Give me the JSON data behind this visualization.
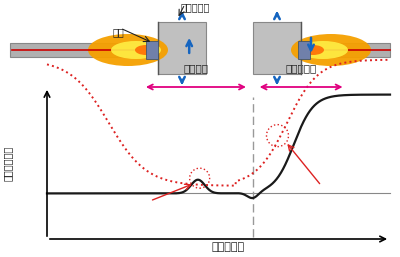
{
  "ylabel": "終端の変形量",
  "xlabel": "電極の位置",
  "label_denkyoku": "電極",
  "label_endtab_top": "エンドタブ",
  "label_yosetsu": "溶接継手",
  "label_endtab_graph": "エンドタブ",
  "bg_color": "#ffffff",
  "solid_line_color": "#1a1a1a",
  "dotted_line_color": "#dd2222",
  "arrow_color": "#e0007f",
  "dashed_vline_color": "#999999",
  "arrow_blue": "#1565c0",
  "text_color": "#222222",
  "flame_color_outer": "#f5a000",
  "flame_color_inner": "#ffee44",
  "flame_color_center": "#ff6600",
  "plate_color": "#b0b0b0",
  "plate_edge": "#888888",
  "box_color": "#c0c0c0",
  "box_edge": "#888888",
  "electrode_color": "#9090b0",
  "beam_red": "#cc0000",
  "beam_orange": "#ff8800"
}
